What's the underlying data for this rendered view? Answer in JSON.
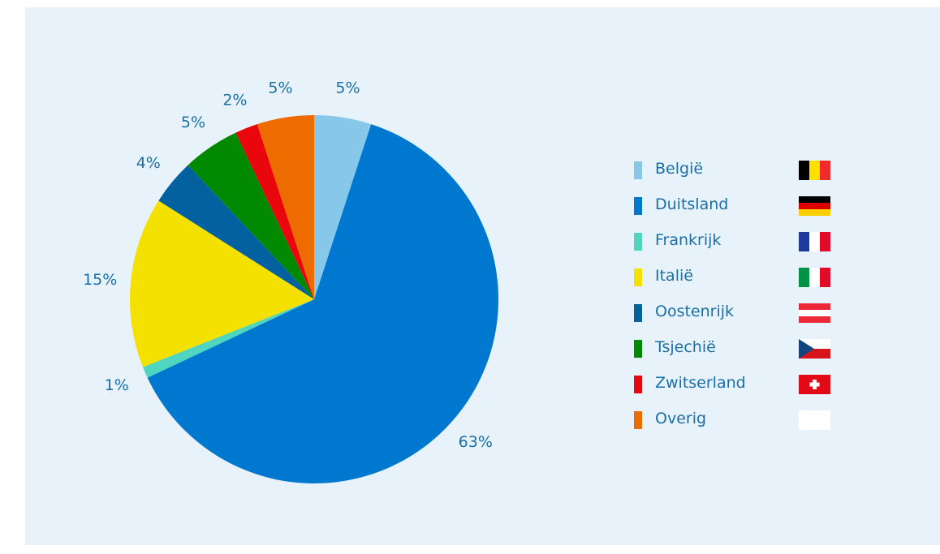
{
  "chart_data": {
    "type": "pie",
    "title": "",
    "slices": [
      {
        "label": "België",
        "value": 5,
        "value_label": "5%",
        "color": "#87c8ea"
      },
      {
        "label": "Duitsland",
        "value": 63,
        "value_label": "63%",
        "color": "#0078d0"
      },
      {
        "label": "Frankrijk",
        "value": 1,
        "value_label": "1%",
        "color": "#4fd6bf"
      },
      {
        "label": "Italië",
        "value": 15,
        "value_label": "15%",
        "color": "#f5e100"
      },
      {
        "label": "Oostenrijk",
        "value": 4,
        "value_label": "4%",
        "color": "#02619e"
      },
      {
        "label": "Tsjechië",
        "value": 5,
        "value_label": "5%",
        "color": "#018a01"
      },
      {
        "label": "Zwitserland",
        "value": 2,
        "value_label": "2%",
        "color": "#e9070d"
      },
      {
        "label": "Overig",
        "value": 5,
        "value_label": "5%",
        "color": "#ee6b00"
      }
    ],
    "legend_position": "right"
  },
  "flags": [
    "belgium-flag-icon",
    "germany-flag-icon",
    "france-flag-icon",
    "italy-flag-icon",
    "austria-flag-icon",
    "czech-flag-icon",
    "switzerland-flag-icon",
    "blank-flag"
  ]
}
